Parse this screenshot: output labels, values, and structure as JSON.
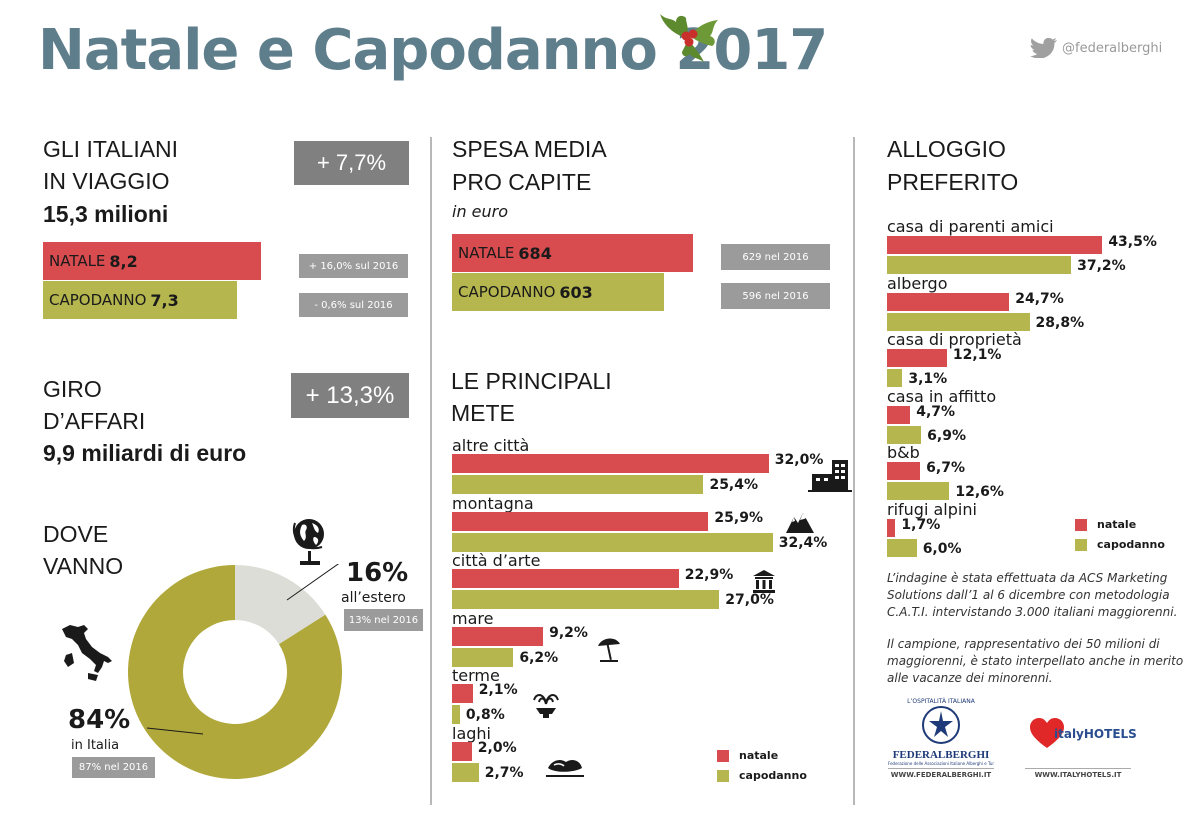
{
  "header": {
    "title": "Natale e Capodanno 2017",
    "twitter": "@federalberghi"
  },
  "travel": {
    "heading_1": "GLI ITALIANI",
    "heading_2": "IN VIAGGIO",
    "total": "15,3 milioni",
    "growth": "+ 7,7%",
    "natale_label": "NATALE",
    "natale_value": "8,2",
    "natale_change": "+ 16,0% sul 2016",
    "capodanno_label": "CAPODANNO",
    "capodanno_value": "7,3",
    "capodanno_change": "- 0,6% sul 2016"
  },
  "business": {
    "heading_1": "GIRO",
    "heading_2": "D’AFFARI",
    "total": "9,9 miliardi di euro",
    "growth": "+ 13,3%"
  },
  "where": {
    "heading_1": "DOVE",
    "heading_2": "VANNO",
    "abroad_pct": "16%",
    "abroad_label": "all’estero",
    "abroad_prev": "13% nel 2016",
    "italy_pct": "84%",
    "italy_label": "in Italia",
    "italy_prev": "87% nel 2016",
    "colors": {
      "italy": "#b0a83a",
      "abroad": "#dcddd6"
    }
  },
  "spending": {
    "heading_1": "SPESA MEDIA",
    "heading_2": "PRO CAPITE",
    "unit": "in euro",
    "natale_label": "NATALE",
    "natale_value": "684",
    "natale_prev": "629 nel 2016",
    "capodanno_label": "CAPODANNO",
    "capodanno_value": "603",
    "capodanno_prev": "596 nel 2016"
  },
  "destinations": {
    "heading_1": "LE PRINCIPALI",
    "heading_2": "METE",
    "legend_natale": "natale",
    "legend_capodanno": "capodanno"
  },
  "lodging": {
    "heading_1": "ALLOGGIO",
    "heading_2": "PREFERITO",
    "legend_natale": "natale",
    "legend_capodanno": "capodanno"
  },
  "note": {
    "text_1": "L’indagine è stata effettuata da ACS Marketing Solutions dall’1 al 6 dicembre con metodologia C.A.T.I. intervistando 3.000 italiani maggiorenni.",
    "text_2": "Il campione, rappresentativo dei 50 milioni di maggiorenni, è stato interpellato anche in merito alle vacanze dei minorenni."
  },
  "logos": {
    "federalberghi_top": "L’OSPITALITÀ ITALIANA",
    "federalberghi_name": "FEDERALBERGHI",
    "federalberghi_sub": "Federazione delle Associazioni Italiane Alberghi e Turismo",
    "federalberghi_url": "WWW.FEDERALBERGHI.IT",
    "italyhotels_name": "italyHOTELS",
    "italyhotels_url": "WWW.ITALYHOTELS.IT"
  },
  "colors": {
    "natale": "#d84b4f",
    "capodanno": "#b5b64e",
    "title": "#5f7e8c"
  },
  "chart_data": [
    {
      "type": "pie",
      "variant": "donut",
      "categories": [
        "in Italia",
        "all’estero"
      ],
      "values": [
        84,
        16
      ]
    },
    {
      "type": "bar",
      "orientation": "horizontal",
      "categories": [
        "altre città",
        "montagna",
        "città d’arte",
        "mare",
        "terme",
        "laghi"
      ],
      "series": [
        {
          "name": "natale",
          "values": [
            32.0,
            25.9,
            22.9,
            9.2,
            2.1,
            2.0
          ],
          "labels": [
            "32,0%",
            "25,9%",
            "22,9%",
            "9,2%",
            "2,1%",
            "2,0%"
          ]
        },
        {
          "name": "capodanno",
          "values": [
            25.4,
            32.4,
            27.0,
            6.2,
            0.8,
            2.7
          ],
          "labels": [
            "25,4%",
            "32,4%",
            "27,0%",
            "6,2%",
            "0,8%",
            "2,7%"
          ]
        }
      ],
      "icons": [
        "buildings-icon",
        "mountain-icon",
        "temple-icon",
        "umbrella-icon",
        "fountain-icon",
        "lake-icon"
      ]
    },
    {
      "type": "bar",
      "orientation": "horizontal",
      "categories": [
        "casa di parenti amici",
        "albergo",
        "casa di proprietà",
        "casa in affitto",
        "b&b",
        "rifugi alpini"
      ],
      "series": [
        {
          "name": "natale",
          "values": [
            43.5,
            24.7,
            12.1,
            4.7,
            6.7,
            1.7
          ],
          "labels": [
            "43,5%",
            "24,7%",
            "12,1%",
            "4,7%",
            "6,7%",
            "1,7%"
          ]
        },
        {
          "name": "capodanno",
          "values": [
            37.2,
            28.8,
            3.1,
            6.9,
            12.6,
            6.0
          ],
          "labels": [
            "37,2%",
            "28,8%",
            "3,1%",
            "6,9%",
            "12,6%",
            "6,0%"
          ]
        }
      ]
    }
  ]
}
